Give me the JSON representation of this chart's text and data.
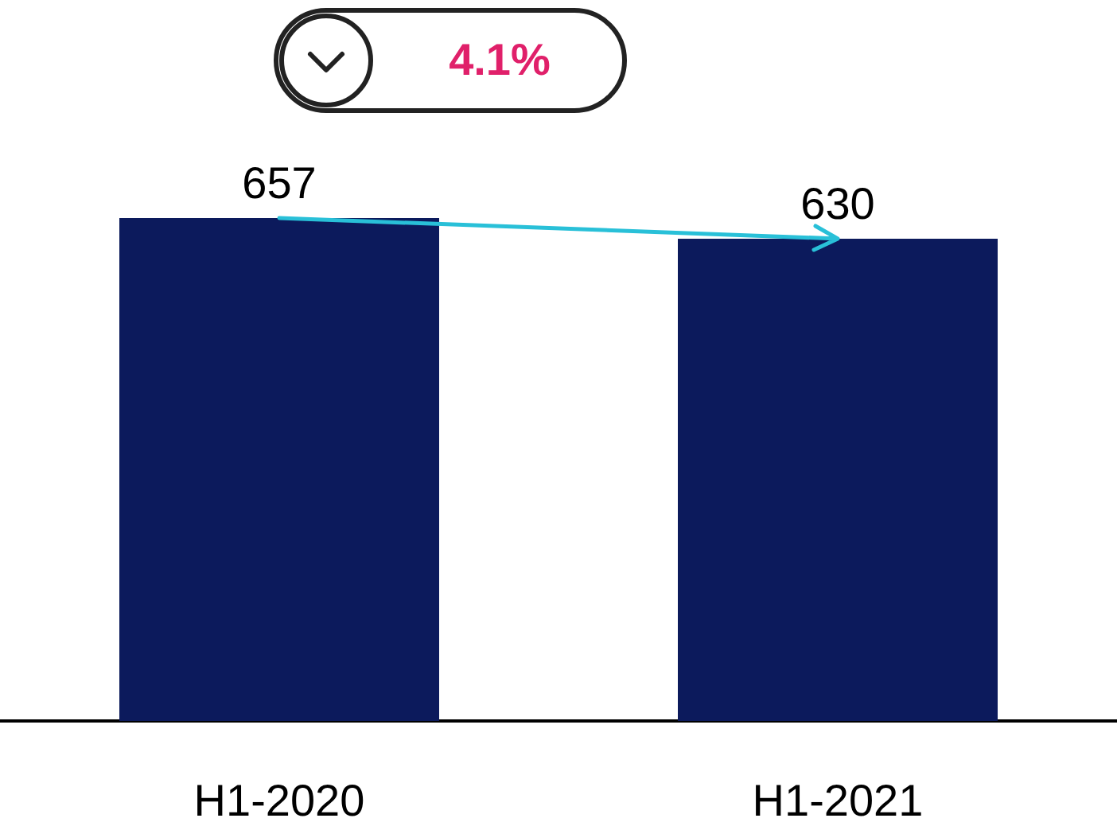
{
  "chart_data": {
    "type": "bar",
    "categories": [
      "H1-2020",
      "H1-2021"
    ],
    "values": [
      657,
      630
    ],
    "color": "#0c1a5c",
    "data_labels": true,
    "annotations": [
      "4.1%"
    ]
  }
}
